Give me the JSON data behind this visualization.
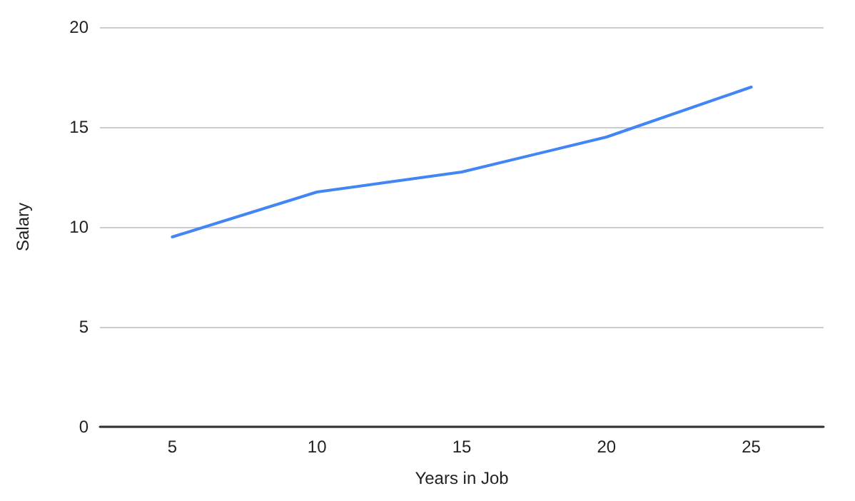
{
  "chart_data": {
    "type": "line",
    "xlabel": "Years in Job",
    "ylabel": "Salary",
    "categories": [
      "5",
      "10",
      "15",
      "20",
      "25"
    ],
    "series": [
      {
        "color": "#4285f4",
        "values": [
          9.5,
          11.75,
          12.75,
          14.5,
          17
        ]
      }
    ],
    "ylim": [
      0,
      20
    ],
    "yticks": [
      0,
      5,
      10,
      15,
      20
    ],
    "grid": "y",
    "marker": "none",
    "line_style": "solid"
  }
}
